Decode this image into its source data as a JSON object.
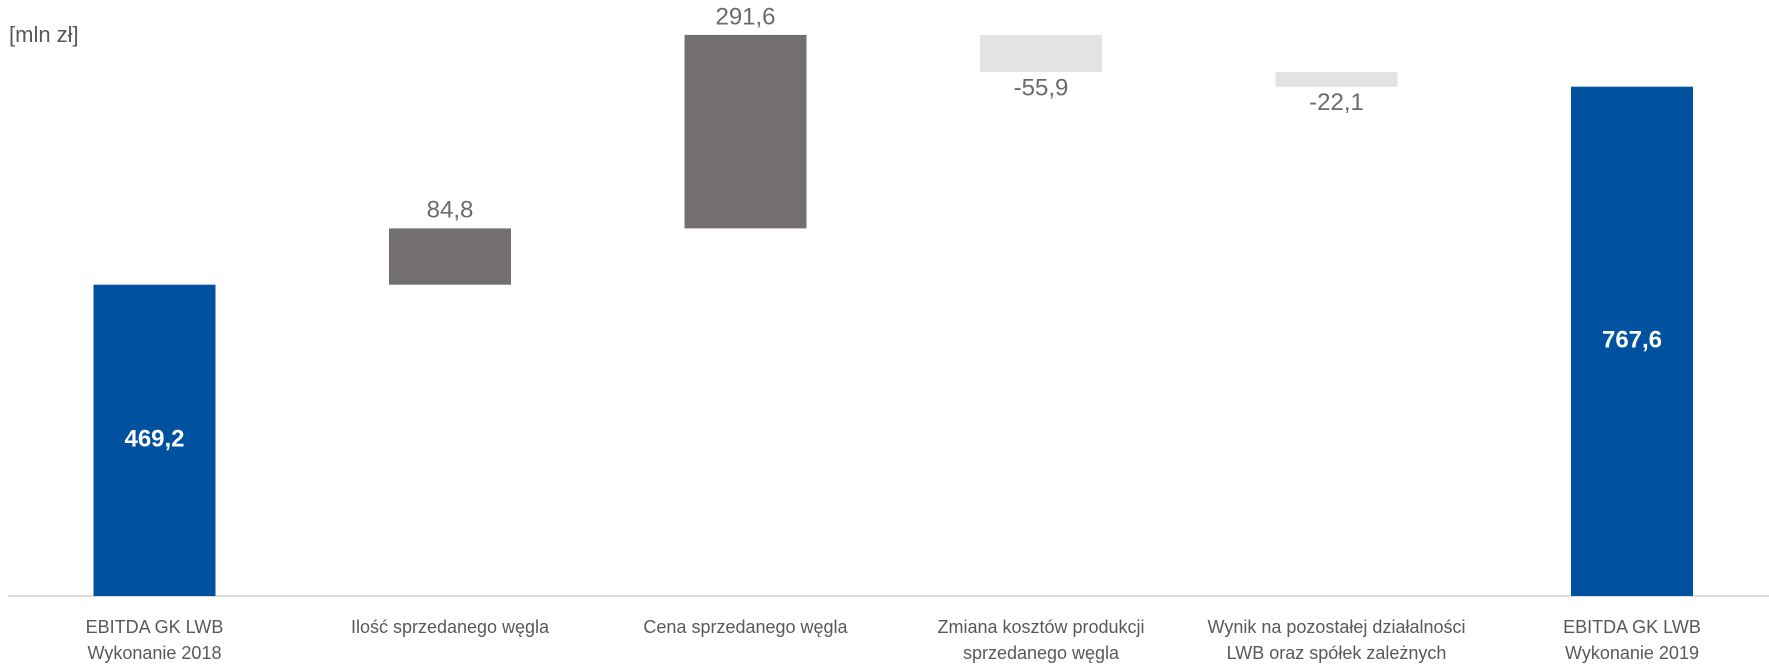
{
  "chart_data": {
    "type": "waterfall",
    "y_label": "[mln zł]",
    "categories": [
      [
        "EBITDA GK LWB",
        "Wykonanie 2018"
      ],
      [
        "Ilość sprzedanego węgla"
      ],
      [
        "Cena sprzedanego węgla"
      ],
      [
        "Zmiana kosztów produkcji",
        "sprzedanego węgla"
      ],
      [
        "Wynik na pozostałej działalności",
        "LWB oraz spółek zależnych"
      ],
      [
        "EBITDA GK LWB",
        "Wykonanie 2019"
      ]
    ],
    "values": [
      469.2,
      84.8,
      291.6,
      -55.9,
      -22.1,
      767.6
    ],
    "value_labels": [
      "469,2",
      "84,8",
      "291,6",
      "-55,9",
      "-22,1",
      "767,6"
    ],
    "is_total": [
      true,
      false,
      false,
      false,
      false,
      true
    ],
    "colors": [
      "#00519e",
      "#736f6e",
      "#736f6e",
      "#e3e3e3",
      "#e3e3e3",
      "#00519e"
    ],
    "ylim": [
      0,
      850
    ]
  }
}
